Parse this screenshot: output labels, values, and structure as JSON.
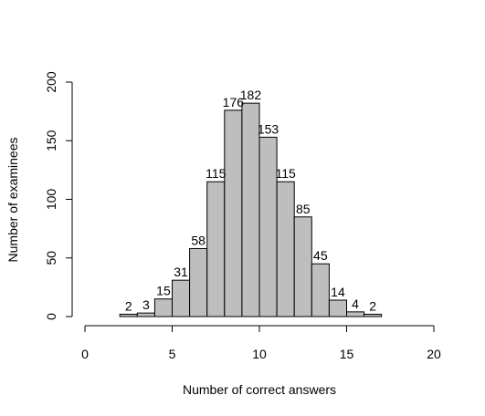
{
  "chart_data": {
    "type": "bar",
    "bins": [
      {
        "x0": 2,
        "x1": 3,
        "count": 2
      },
      {
        "x0": 3,
        "x1": 4,
        "count": 3
      },
      {
        "x0": 4,
        "x1": 5,
        "count": 15
      },
      {
        "x0": 5,
        "x1": 6,
        "count": 31
      },
      {
        "x0": 6,
        "x1": 7,
        "count": 58
      },
      {
        "x0": 7,
        "x1": 8,
        "count": 115
      },
      {
        "x0": 8,
        "x1": 9,
        "count": 176
      },
      {
        "x0": 9,
        "x1": 10,
        "count": 182
      },
      {
        "x0": 10,
        "x1": 11,
        "count": 153
      },
      {
        "x0": 11,
        "x1": 12,
        "count": 115
      },
      {
        "x0": 12,
        "x1": 13,
        "count": 85
      },
      {
        "x0": 13,
        "x1": 14,
        "count": 45
      },
      {
        "x0": 14,
        "x1": 15,
        "count": 14
      },
      {
        "x0": 15,
        "x1": 16,
        "count": 4
      },
      {
        "x0": 16,
        "x1": 17,
        "count": 2
      }
    ],
    "xlabel": "Number of correct answers",
    "ylabel": "Number of examinees",
    "xlim": [
      0,
      20
    ],
    "ylim": [
      0,
      200
    ],
    "xticks": [
      "0",
      "5",
      "10",
      "15",
      "20"
    ],
    "yticks": [
      "0",
      "50",
      "100",
      "150",
      "200"
    ],
    "grid": false,
    "bar_color": "#bebebe",
    "edge_color": "#000000"
  }
}
